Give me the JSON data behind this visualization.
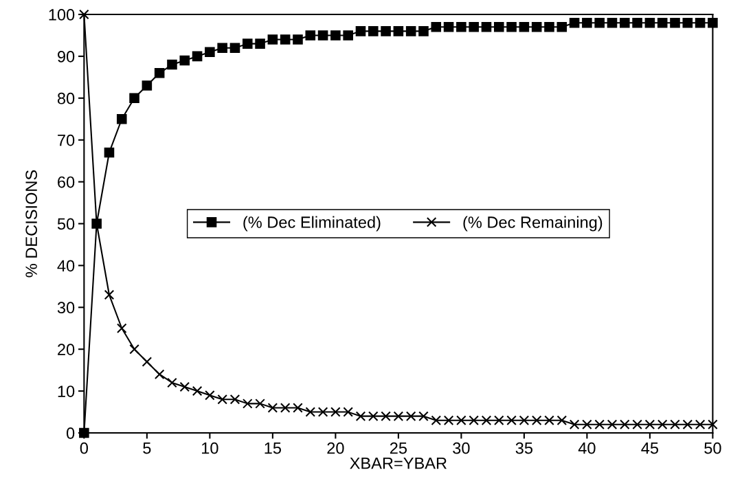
{
  "chart_data": {
    "type": "line",
    "xlabel": "XBAR=YBAR",
    "ylabel": "% DECISIONS",
    "x": [
      0,
      1,
      2,
      3,
      4,
      5,
      6,
      7,
      8,
      9,
      10,
      11,
      12,
      13,
      14,
      15,
      16,
      17,
      18,
      19,
      20,
      21,
      22,
      23,
      24,
      25,
      26,
      27,
      28,
      29,
      30,
      31,
      32,
      33,
      34,
      35,
      36,
      37,
      38,
      39,
      40,
      41,
      42,
      43,
      44,
      45,
      46,
      47,
      48,
      49,
      50
    ],
    "series": [
      {
        "name": "(% Dec Eliminated)",
        "color": "#000000",
        "marker": "square",
        "values": [
          0,
          50,
          67,
          75,
          80,
          83,
          86,
          88,
          89,
          90,
          91,
          92,
          92,
          93,
          93,
          94,
          94,
          94,
          95,
          95,
          95,
          95,
          96,
          96,
          96,
          96,
          96,
          96,
          97,
          97,
          97,
          97,
          97,
          97,
          97,
          97,
          97,
          97,
          97,
          98,
          98,
          98,
          98,
          98,
          98,
          98,
          98,
          98,
          98,
          98,
          98
        ]
      },
      {
        "name": "(% Dec Remaining)",
        "color": "#000000",
        "marker": "cross",
        "values": [
          100,
          50,
          33,
          25,
          20,
          17,
          14,
          12,
          11,
          10,
          9,
          8,
          8,
          7,
          7,
          6,
          6,
          6,
          5,
          5,
          5,
          5,
          4,
          4,
          4,
          4,
          4,
          4,
          3,
          3,
          3,
          3,
          3,
          3,
          3,
          3,
          3,
          3,
          3,
          2,
          2,
          2,
          2,
          2,
          2,
          2,
          2,
          2,
          2,
          2,
          2
        ]
      }
    ],
    "xlim": [
      0,
      50
    ],
    "xticks": [
      0,
      5,
      10,
      15,
      20,
      25,
      30,
      35,
      40,
      45,
      50
    ],
    "ylim": [
      0,
      100
    ],
    "yticks": [
      0,
      10,
      20,
      30,
      40,
      50,
      60,
      70,
      80,
      90,
      100
    ],
    "grid": false,
    "legend": "center",
    "line_style": "solid"
  }
}
